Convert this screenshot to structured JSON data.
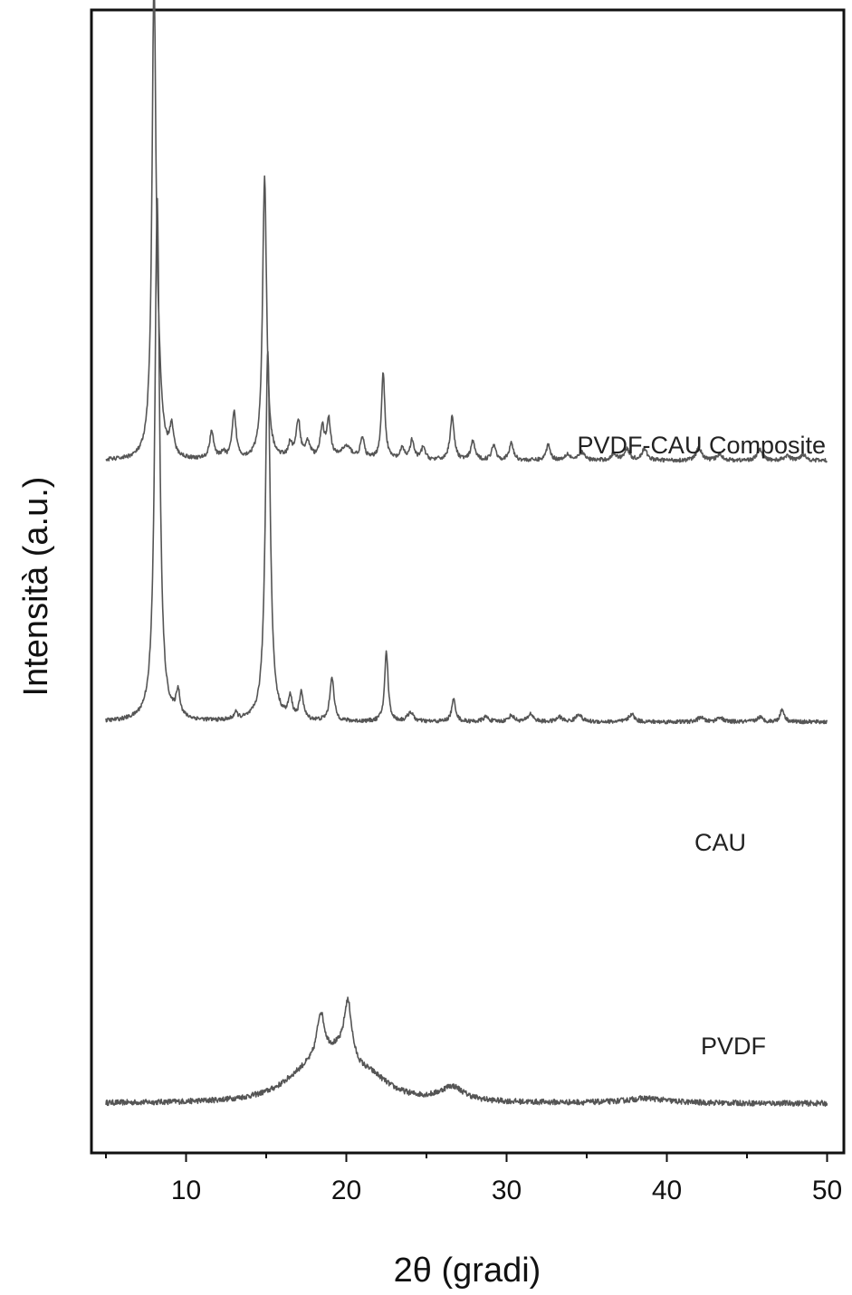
{
  "chart_data": {
    "type": "line",
    "title": "",
    "xlabel": "2θ (gradi)",
    "ylabel": "Intensità (a.u.)",
    "xlim": [
      4,
      51
    ],
    "xticks": [
      10,
      20,
      30,
      40,
      50
    ],
    "yticks_shown": false,
    "grid": false,
    "legend": "none",
    "series": [
      {
        "name": "PVDF",
        "color": "#555555",
        "baseline": 0.6,
        "noise": 0.35,
        "peaks": [
          {
            "x": 17.5,
            "height": 1.6,
            "width": 1.8
          },
          {
            "x": 18.4,
            "height": 3.0,
            "width": 0.3
          },
          {
            "x": 19.4,
            "height": 2.0,
            "width": 1.2
          },
          {
            "x": 20.1,
            "height": 3.8,
            "width": 0.3
          },
          {
            "x": 21.5,
            "height": 1.2,
            "width": 1.5
          },
          {
            "x": 26.6,
            "height": 0.9,
            "width": 0.9
          },
          {
            "x": 38.7,
            "height": 0.3,
            "width": 1.5
          }
        ]
      },
      {
        "name": "CAU",
        "color": "#555555",
        "baseline": 24.7,
        "noise": 0.25,
        "peaks": [
          {
            "x": 8.2,
            "height": 33.0,
            "width": 0.18
          },
          {
            "x": 9.5,
            "height": 1.6,
            "width": 0.15
          },
          {
            "x": 13.1,
            "height": 0.4,
            "width": 0.15
          },
          {
            "x": 15.1,
            "height": 23.5,
            "width": 0.18
          },
          {
            "x": 16.5,
            "height": 1.3,
            "width": 0.15
          },
          {
            "x": 17.2,
            "height": 1.7,
            "width": 0.15
          },
          {
            "x": 19.1,
            "height": 2.8,
            "width": 0.15
          },
          {
            "x": 22.5,
            "height": 4.4,
            "width": 0.13
          },
          {
            "x": 24.0,
            "height": 0.6,
            "width": 0.2
          },
          {
            "x": 26.7,
            "height": 1.4,
            "width": 0.15
          },
          {
            "x": 28.7,
            "height": 0.3,
            "width": 0.2
          },
          {
            "x": 30.3,
            "height": 0.4,
            "width": 0.2
          },
          {
            "x": 31.5,
            "height": 0.5,
            "width": 0.2
          },
          {
            "x": 33.3,
            "height": 0.3,
            "width": 0.2
          },
          {
            "x": 34.5,
            "height": 0.5,
            "width": 0.2
          },
          {
            "x": 37.8,
            "height": 0.5,
            "width": 0.2
          },
          {
            "x": 42.1,
            "height": 0.3,
            "width": 0.2
          },
          {
            "x": 43.3,
            "height": 0.3,
            "width": 0.2
          },
          {
            "x": 45.8,
            "height": 0.3,
            "width": 0.2
          },
          {
            "x": 47.2,
            "height": 0.8,
            "width": 0.15
          }
        ]
      },
      {
        "name": "PVDF-CAU Composite",
        "color": "#555555",
        "baseline": 41.2,
        "noise": 0.25,
        "peaks": [
          {
            "x": 8.0,
            "height": 29.5,
            "width": 0.15
          },
          {
            "x": 8.3,
            "height": 3.0,
            "width": 0.2
          },
          {
            "x": 9.1,
            "height": 1.8,
            "width": 0.15
          },
          {
            "x": 11.6,
            "height": 1.8,
            "width": 0.15
          },
          {
            "x": 12.3,
            "height": 0.4,
            "width": 0.15
          },
          {
            "x": 13.0,
            "height": 2.9,
            "width": 0.15
          },
          {
            "x": 14.9,
            "height": 17.8,
            "width": 0.15
          },
          {
            "x": 16.5,
            "height": 0.9,
            "width": 0.15
          },
          {
            "x": 17.0,
            "height": 2.4,
            "width": 0.15
          },
          {
            "x": 17.6,
            "height": 1.0,
            "width": 0.2
          },
          {
            "x": 18.5,
            "height": 1.9,
            "width": 0.15
          },
          {
            "x": 18.9,
            "height": 2.4,
            "width": 0.15
          },
          {
            "x": 20.0,
            "height": 0.8,
            "width": 0.4
          },
          {
            "x": 21.0,
            "height": 1.3,
            "width": 0.15
          },
          {
            "x": 22.3,
            "height": 5.5,
            "width": 0.13
          },
          {
            "x": 23.5,
            "height": 0.7,
            "width": 0.15
          },
          {
            "x": 24.1,
            "height": 1.2,
            "width": 0.15
          },
          {
            "x": 24.8,
            "height": 0.8,
            "width": 0.15
          },
          {
            "x": 26.6,
            "height": 2.8,
            "width": 0.15
          },
          {
            "x": 27.9,
            "height": 1.2,
            "width": 0.15
          },
          {
            "x": 29.2,
            "height": 1.0,
            "width": 0.15
          },
          {
            "x": 30.3,
            "height": 1.1,
            "width": 0.15
          },
          {
            "x": 32.6,
            "height": 1.0,
            "width": 0.15
          },
          {
            "x": 33.8,
            "height": 0.4,
            "width": 0.2
          },
          {
            "x": 34.7,
            "height": 0.5,
            "width": 0.2
          },
          {
            "x": 36.7,
            "height": 0.4,
            "width": 0.2
          },
          {
            "x": 37.5,
            "height": 0.7,
            "width": 0.2
          },
          {
            "x": 38.6,
            "height": 0.7,
            "width": 0.2
          },
          {
            "x": 42.0,
            "height": 0.8,
            "width": 0.2
          },
          {
            "x": 43.3,
            "height": 0.4,
            "width": 0.2
          },
          {
            "x": 45.8,
            "height": 0.7,
            "width": 0.2
          },
          {
            "x": 47.5,
            "height": 0.3,
            "width": 0.2
          },
          {
            "x": 48.5,
            "height": 0.4,
            "width": 0.2
          }
        ]
      }
    ]
  }
}
